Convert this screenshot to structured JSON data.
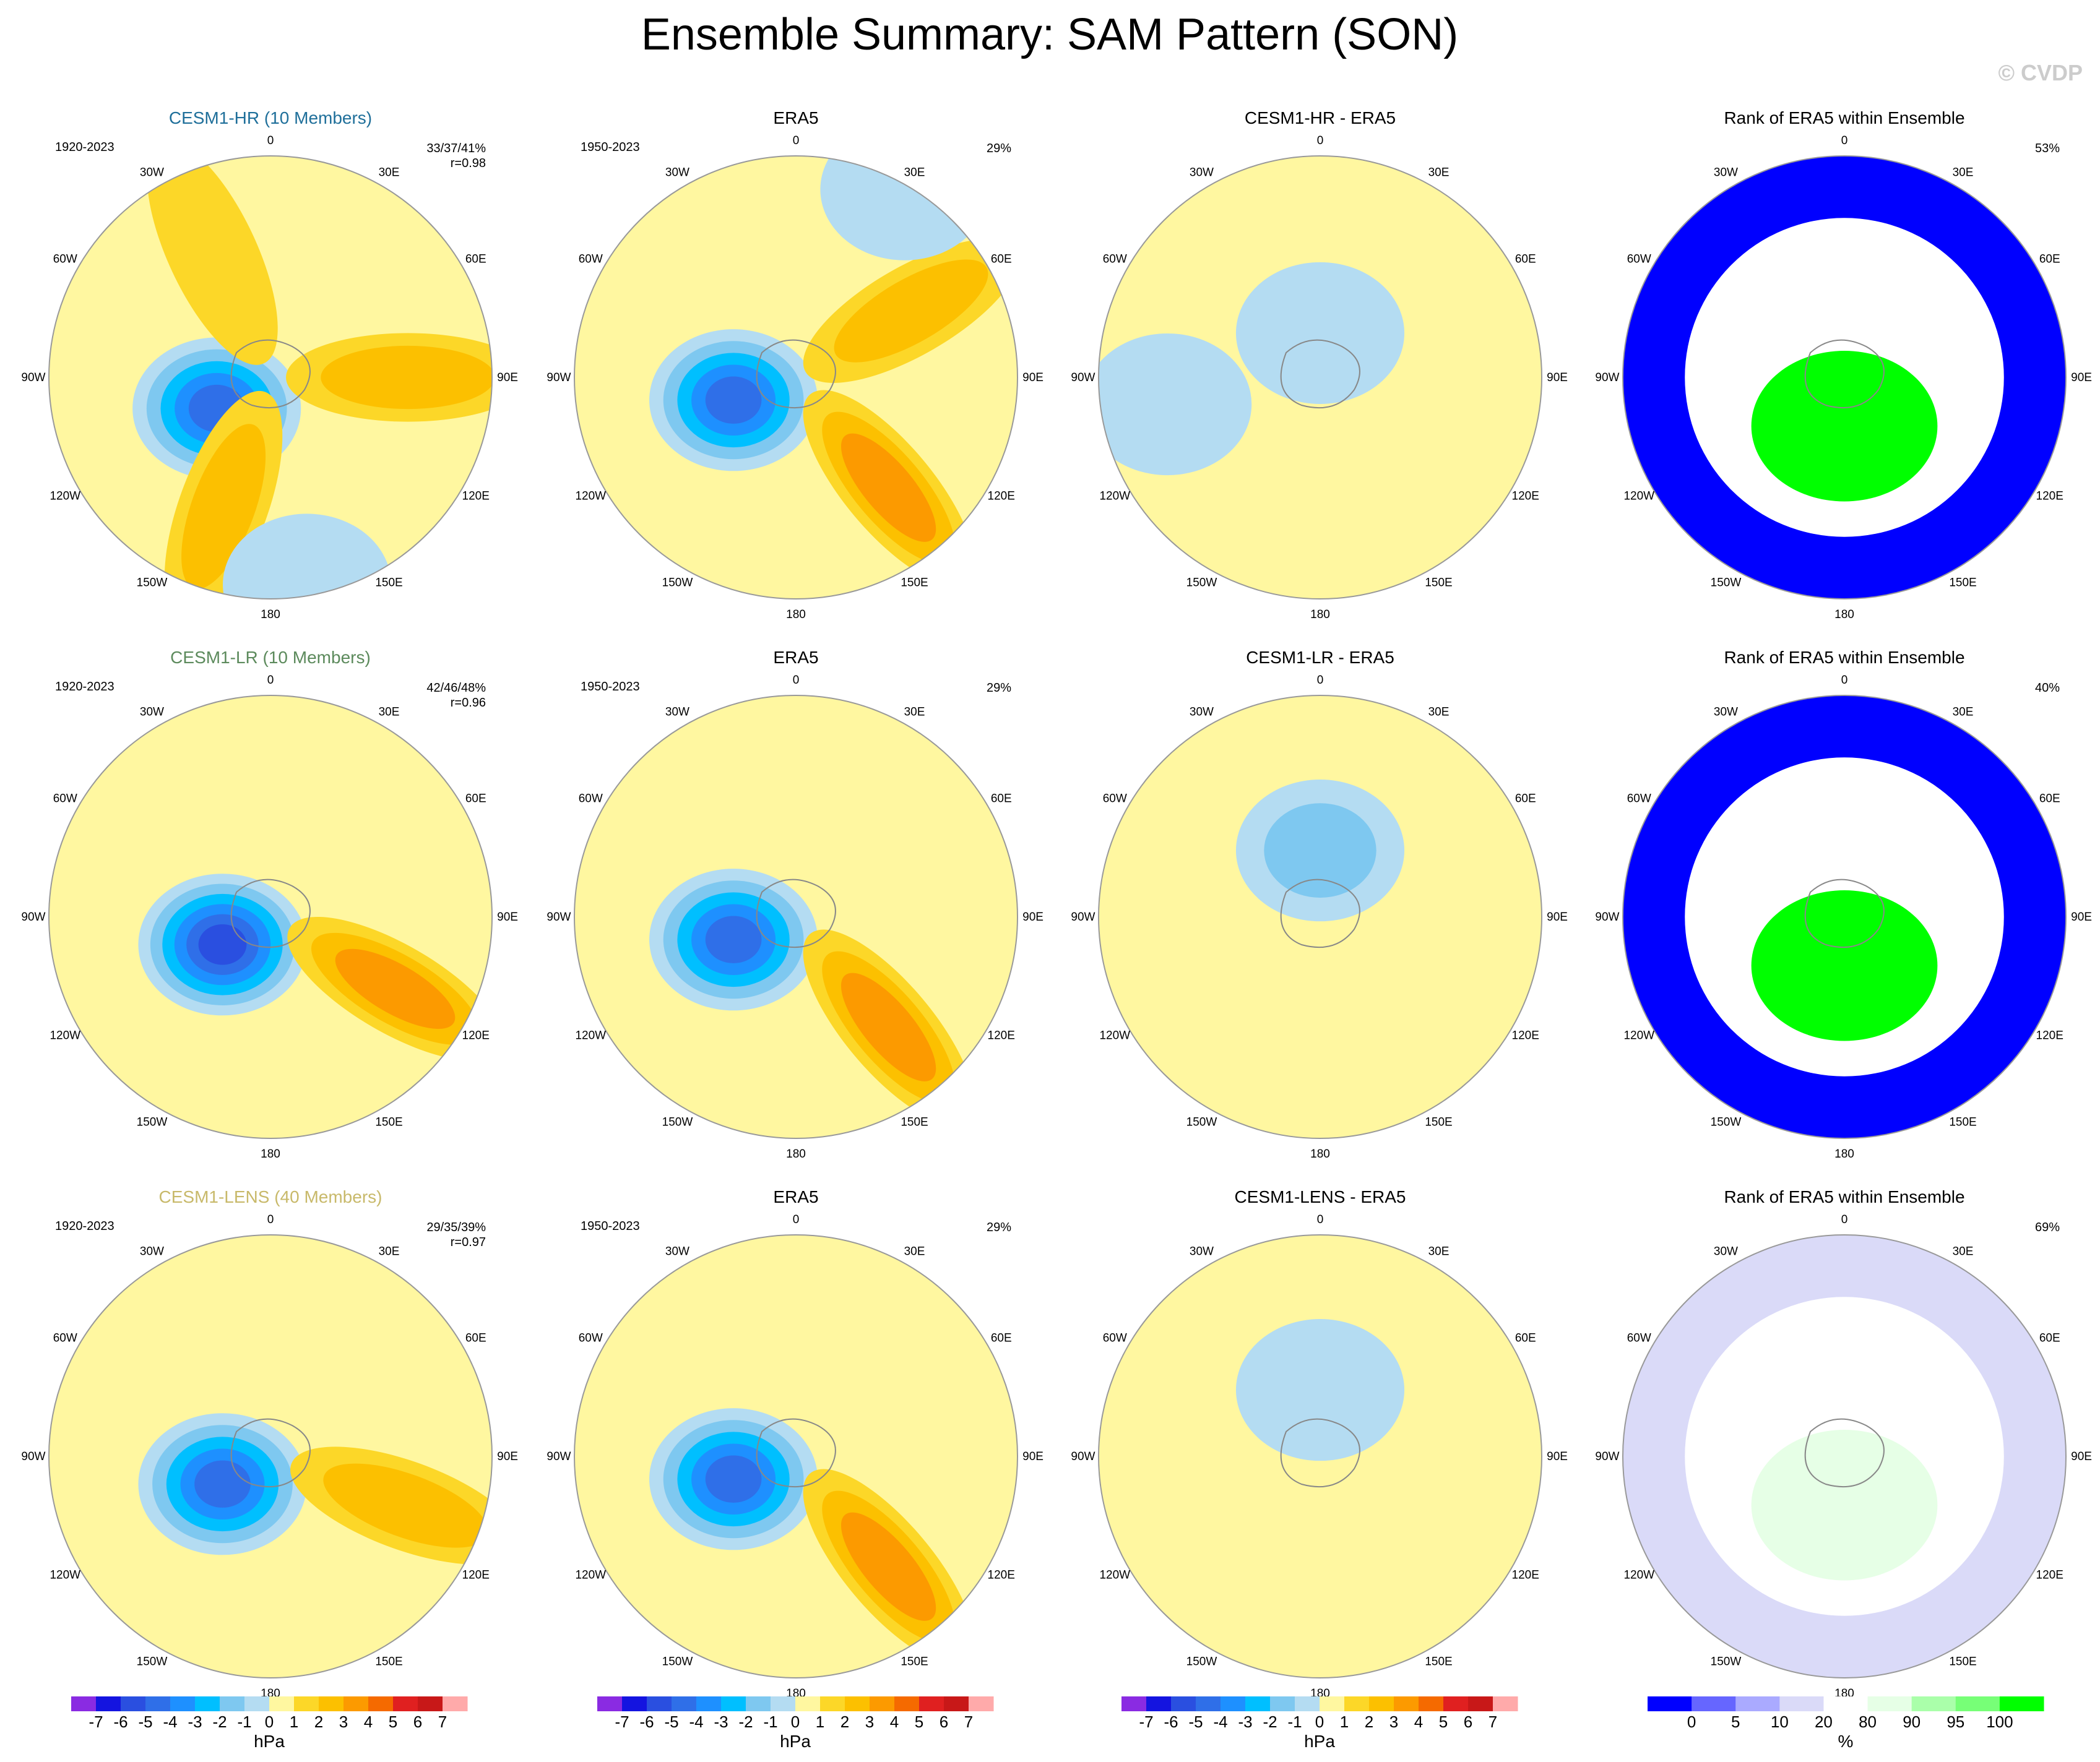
{
  "figure": {
    "title": "Ensemble Summary: SAM Pattern (SON)",
    "watermark": "© CVDP",
    "colors": {
      "hr_label": "#1f6f9a",
      "lr_label": "#5c8a5c",
      "lens_label": "#c8b96a"
    }
  },
  "chart_data": [
    {
      "type": "polar-contour-map",
      "row": 0,
      "col": 0,
      "title": "CESM1-HR (10 Members)",
      "period": "1920-2023",
      "stats": [
        "33/37/41%",
        "r=0.98"
      ],
      "colorbar": "hPa",
      "features": [
        {
          "kind": "low",
          "angle": 240,
          "radius": 0.28,
          "level": -5
        },
        {
          "kind": "high",
          "angle": 90,
          "radius": 0.62,
          "level": 2
        },
        {
          "kind": "high",
          "angle": 200,
          "radius": 0.62,
          "level": 2
        },
        {
          "kind": "high",
          "angle": 335,
          "radius": 0.62,
          "level": 1
        },
        {
          "kind": "low",
          "angle": 170,
          "radius": 0.95,
          "level": -1
        }
      ]
    },
    {
      "type": "polar-contour-map",
      "row": 0,
      "col": 1,
      "title": "ERA5",
      "period": "1950-2023",
      "stats": [
        "29%"
      ],
      "colorbar": "hPa",
      "features": [
        {
          "kind": "low",
          "angle": 250,
          "radius": 0.3,
          "level": -5
        },
        {
          "kind": "high",
          "angle": 140,
          "radius": 0.65,
          "level": 3
        },
        {
          "kind": "high",
          "angle": 60,
          "radius": 0.6,
          "level": 2
        },
        {
          "kind": "low",
          "angle": 30,
          "radius": 0.98,
          "level": -1
        }
      ]
    },
    {
      "type": "polar-contour-map",
      "row": 0,
      "col": 2,
      "title": "CESM1-HR - ERA5",
      "period": "",
      "stats": [],
      "colorbar": "hPa",
      "features": [
        {
          "kind": "low",
          "angle": 0,
          "radius": 0.2,
          "level": -1
        },
        {
          "kind": "low",
          "angle": 260,
          "radius": 0.7,
          "level": -1
        }
      ]
    },
    {
      "type": "rank-map",
      "row": 0,
      "col": 3,
      "title": "Rank of ERA5 within Ensemble",
      "period": "",
      "stats": [
        "53%"
      ],
      "colorbar": "%",
      "features": [
        {
          "kind": "outer",
          "value": 0
        },
        {
          "kind": "inner",
          "value": 100
        }
      ]
    },
    {
      "type": "polar-contour-map",
      "row": 1,
      "col": 0,
      "title": "CESM1-LR (10 Members)",
      "period": "1920-2023",
      "stats": [
        "42/46/48%",
        "r=0.96"
      ],
      "colorbar": "hPa",
      "features": [
        {
          "kind": "low",
          "angle": 240,
          "radius": 0.25,
          "level": -6
        },
        {
          "kind": "high",
          "angle": 120,
          "radius": 0.65,
          "level": 3
        }
      ]
    },
    {
      "type": "polar-contour-map",
      "row": 1,
      "col": 1,
      "title": "ERA5",
      "period": "1950-2023",
      "stats": [
        "29%"
      ],
      "colorbar": "hPa",
      "features": [
        {
          "kind": "low",
          "angle": 250,
          "radius": 0.3,
          "level": -5
        },
        {
          "kind": "high",
          "angle": 140,
          "radius": 0.65,
          "level": 3
        }
      ]
    },
    {
      "type": "polar-contour-map",
      "row": 1,
      "col": 2,
      "title": "CESM1-LR - ERA5",
      "period": "",
      "stats": [],
      "colorbar": "hPa",
      "features": [
        {
          "kind": "low",
          "angle": 0,
          "radius": 0.3,
          "level": -2
        }
      ]
    },
    {
      "type": "rank-map",
      "row": 1,
      "col": 3,
      "title": "Rank of ERA5 within Ensemble",
      "period": "",
      "stats": [
        "40%"
      ],
      "colorbar": "%",
      "features": [
        {
          "kind": "outer",
          "value": 0
        },
        {
          "kind": "inner",
          "value": 100
        }
      ]
    },
    {
      "type": "polar-contour-map",
      "row": 2,
      "col": 0,
      "title": "CESM1-LENS (40 Members)",
      "period": "1920-2023",
      "stats": [
        "29/35/39%",
        "r=0.97"
      ],
      "colorbar": "hPa",
      "features": [
        {
          "kind": "low",
          "angle": 240,
          "radius": 0.25,
          "level": -5
        },
        {
          "kind": "high",
          "angle": 110,
          "radius": 0.65,
          "level": 2
        }
      ]
    },
    {
      "type": "polar-contour-map",
      "row": 2,
      "col": 1,
      "title": "ERA5",
      "period": "1950-2023",
      "stats": [
        "29%"
      ],
      "colorbar": "hPa",
      "features": [
        {
          "kind": "low",
          "angle": 250,
          "radius": 0.3,
          "level": -5
        },
        {
          "kind": "high",
          "angle": 140,
          "radius": 0.65,
          "level": 3
        }
      ]
    },
    {
      "type": "polar-contour-map",
      "row": 2,
      "col": 2,
      "title": "CESM1-LENS - ERA5",
      "period": "",
      "stats": [],
      "colorbar": "hPa",
      "features": [
        {
          "kind": "low",
          "angle": 0,
          "radius": 0.3,
          "level": -1
        }
      ]
    },
    {
      "type": "rank-map",
      "row": 2,
      "col": 3,
      "title": "Rank of ERA5 within Ensemble",
      "period": "",
      "stats": [
        "69%"
      ],
      "colorbar": "%",
      "features": [
        {
          "kind": "outer",
          "value": 20
        },
        {
          "kind": "inner",
          "value": 90
        }
      ]
    }
  ],
  "lon_labels": {
    "0": "0",
    "30": "30E",
    "60": "60E",
    "90": "90E",
    "120": "120E",
    "150": "150E",
    "180": "180",
    "210": "150W",
    "240": "120W",
    "270": "90W",
    "300": "60W",
    "330": "30W"
  },
  "colorbars": [
    {
      "units": "hPa",
      "labels": [
        "-7",
        "-6",
        "-5",
        "-4",
        "-3",
        "-2",
        "-1",
        "0",
        "1",
        "2",
        "3",
        "4",
        "5",
        "6",
        "7"
      ],
      "colors": [
        "#8a2be2",
        "#1414e0",
        "#2a4fe0",
        "#2f6fe8",
        "#1e90ff",
        "#00bfff",
        "#7ec8f0",
        "#b4dcf2",
        "#fff7a0",
        "#fcd728",
        "#fcc000",
        "#fc9a00",
        "#f56a00",
        "#e02020",
        "#c81818",
        "#ffaaaa"
      ]
    },
    {
      "units": "%",
      "labels": [
        "0",
        "5",
        "10",
        "20",
        "80",
        "90",
        "95",
        "100"
      ],
      "colors": [
        "#0000ff",
        "#6666ff",
        "#aaaaff",
        "#dadaf8",
        "#ffffff",
        "#e6ffe6",
        "#aaffaa",
        "#77ff77",
        "#00ff00"
      ]
    }
  ]
}
